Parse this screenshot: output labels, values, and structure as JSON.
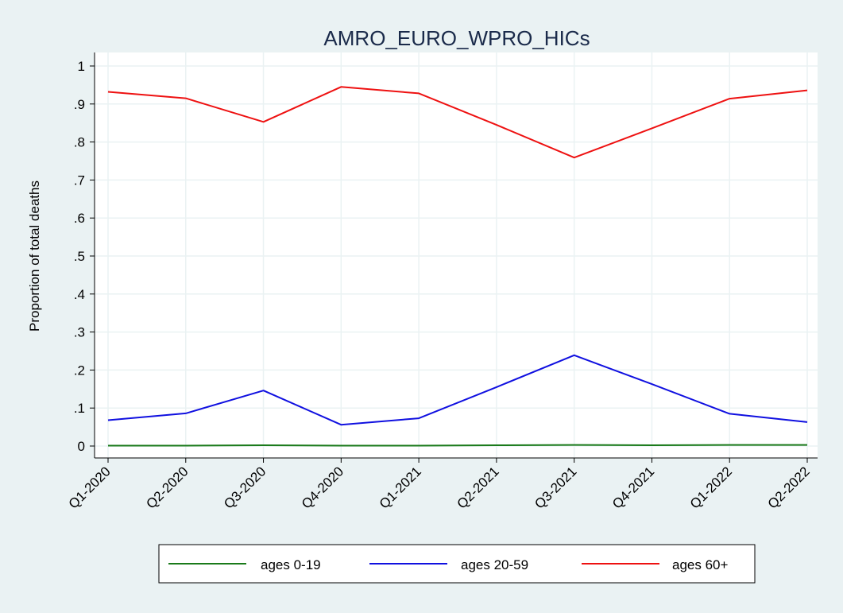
{
  "chart_data": {
    "type": "line",
    "title": "AMRO_EURO_WPRO_HICs",
    "xlabel": "",
    "ylabel": "Proportion of total deaths",
    "categories": [
      "Q1-2020",
      "Q2-2020",
      "Q3-2020",
      "Q4-2020",
      "Q1-2021",
      "Q2-2021",
      "Q3-2021",
      "Q4-2021",
      "Q1-2022",
      "Q2-2022"
    ],
    "ylim": [
      0,
      1
    ],
    "yticks": [
      0,
      0.1,
      0.2,
      0.3,
      0.4,
      0.5,
      0.6,
      0.7,
      0.8,
      0.9,
      1
    ],
    "ytick_labels": [
      "0",
      ".1",
      ".2",
      ".3",
      ".4",
      ".5",
      ".6",
      ".7",
      ".8",
      ".9",
      "1"
    ],
    "grid": true,
    "legend_position": "bottom",
    "series": [
      {
        "name": "ages 0-19",
        "color": "#1a7a1a",
        "values": [
          0.001,
          0.001,
          0.002,
          0.001,
          0.001,
          0.002,
          0.003,
          0.002,
          0.003,
          0.003
        ]
      },
      {
        "name": "ages 20-59",
        "color": "#1010e0",
        "values": [
          0.068,
          0.086,
          0.146,
          0.056,
          0.073,
          0.155,
          0.239,
          0.163,
          0.085,
          0.063
        ]
      },
      {
        "name": "ages 60+",
        "color": "#ee1111",
        "values": [
          0.932,
          0.915,
          0.853,
          0.945,
          0.928,
          0.845,
          0.759,
          0.836,
          0.914,
          0.936
        ]
      }
    ]
  }
}
